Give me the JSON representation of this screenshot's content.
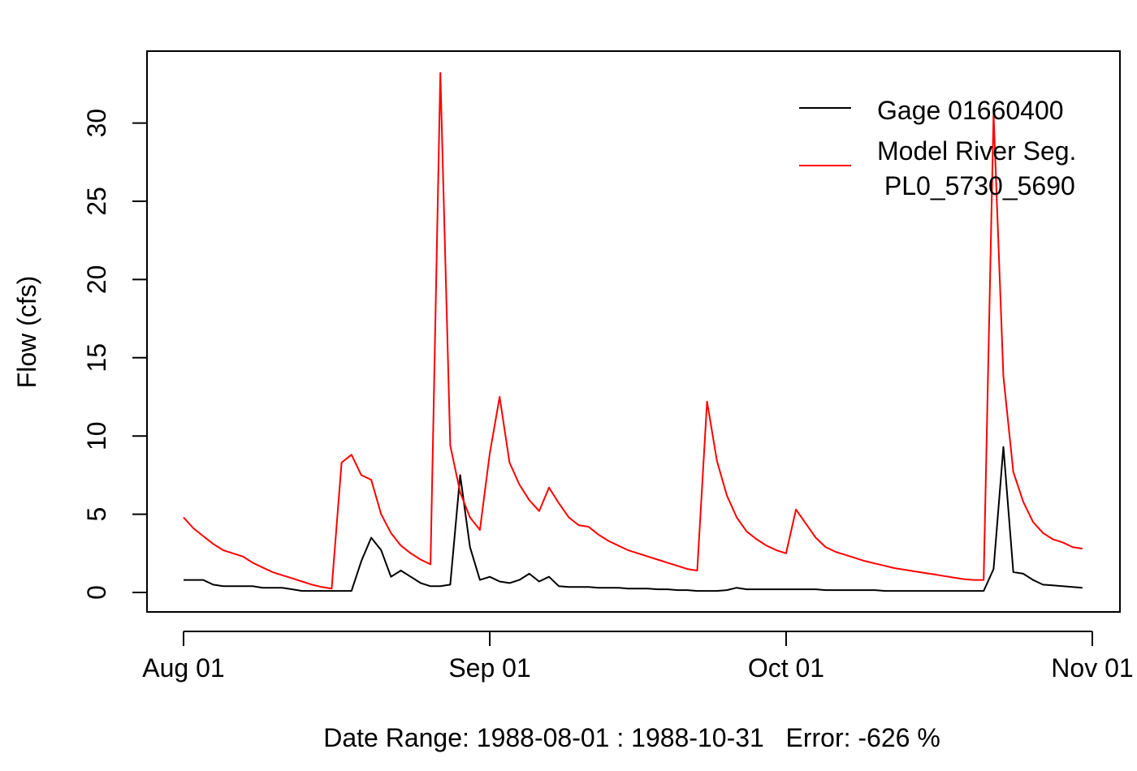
{
  "chart_data": {
    "type": "line",
    "ylabel": "Flow (cfs)",
    "xlabel": "Date Range: 1988-08-01 : 1988-10-31   Error: -626 %",
    "ylim": [
      0,
      33.4
    ],
    "xlim": [
      "1988-08-01",
      "1988-11-01"
    ],
    "grid": false,
    "legend_position": "top-right",
    "yticks": [
      0,
      5,
      10,
      15,
      20,
      25,
      30
    ],
    "ytick_labels": [
      "0",
      "5",
      "10",
      "15",
      "20",
      "25",
      "30"
    ],
    "xticks": [
      {
        "date": "1988-08-01",
        "label": "Aug 01"
      },
      {
        "date": "1988-09-01",
        "label": "Sep 01"
      },
      {
        "date": "1988-10-01",
        "label": "Oct 01"
      },
      {
        "date": "1988-11-01",
        "label": "Nov 01"
      }
    ],
    "series": [
      {
        "name": "Gage 01660400",
        "color": "#000000",
        "x": [
          "1988-08-01",
          "1988-08-02",
          "1988-08-03",
          "1988-08-04",
          "1988-08-05",
          "1988-08-06",
          "1988-08-07",
          "1988-08-08",
          "1988-08-09",
          "1988-08-10",
          "1988-08-11",
          "1988-08-12",
          "1988-08-13",
          "1988-08-14",
          "1988-08-15",
          "1988-08-16",
          "1988-08-17",
          "1988-08-18",
          "1988-08-19",
          "1988-08-20",
          "1988-08-21",
          "1988-08-22",
          "1988-08-23",
          "1988-08-24",
          "1988-08-25",
          "1988-08-26",
          "1988-08-27",
          "1988-08-28",
          "1988-08-29",
          "1988-08-30",
          "1988-08-31",
          "1988-09-01",
          "1988-09-02",
          "1988-09-03",
          "1988-09-04",
          "1988-09-05",
          "1988-09-06",
          "1988-09-07",
          "1988-09-08",
          "1988-09-09",
          "1988-09-10",
          "1988-09-11",
          "1988-09-12",
          "1988-09-13",
          "1988-09-14",
          "1988-09-15",
          "1988-09-16",
          "1988-09-17",
          "1988-09-18",
          "1988-09-19",
          "1988-09-20",
          "1988-09-21",
          "1988-09-22",
          "1988-09-23",
          "1988-09-24",
          "1988-09-25",
          "1988-09-26",
          "1988-09-27",
          "1988-09-28",
          "1988-09-29",
          "1988-09-30",
          "1988-10-01",
          "1988-10-02",
          "1988-10-03",
          "1988-10-04",
          "1988-10-05",
          "1988-10-06",
          "1988-10-07",
          "1988-10-08",
          "1988-10-09",
          "1988-10-10",
          "1988-10-11",
          "1988-10-12",
          "1988-10-13",
          "1988-10-14",
          "1988-10-15",
          "1988-10-16",
          "1988-10-17",
          "1988-10-18",
          "1988-10-19",
          "1988-10-20",
          "1988-10-21",
          "1988-10-22",
          "1988-10-23",
          "1988-10-24",
          "1988-10-25",
          "1988-10-26",
          "1988-10-27",
          "1988-10-28",
          "1988-10-29",
          "1988-10-30",
          "1988-10-31"
        ],
        "values": [
          0.8,
          0.8,
          0.8,
          0.5,
          0.4,
          0.4,
          0.4,
          0.4,
          0.3,
          0.3,
          0.3,
          0.2,
          0.1,
          0.1,
          0.1,
          0.1,
          0.1,
          0.1,
          2.0,
          3.5,
          2.7,
          1.0,
          1.4,
          1.0,
          0.6,
          0.4,
          0.4,
          0.5,
          7.5,
          2.9,
          0.8,
          1.0,
          0.7,
          0.6,
          0.8,
          1.2,
          0.7,
          1.0,
          0.4,
          0.35,
          0.35,
          0.35,
          0.3,
          0.3,
          0.3,
          0.25,
          0.25,
          0.25,
          0.2,
          0.2,
          0.15,
          0.15,
          0.1,
          0.1,
          0.1,
          0.15,
          0.3,
          0.2,
          0.2,
          0.2,
          0.2,
          0.2,
          0.2,
          0.2,
          0.2,
          0.15,
          0.15,
          0.15,
          0.15,
          0.15,
          0.15,
          0.1,
          0.1,
          0.1,
          0.1,
          0.1,
          0.1,
          0.1,
          0.1,
          0.1,
          0.1,
          0.1,
          1.5,
          9.3,
          1.3,
          1.2,
          0.8,
          0.5,
          0.45,
          0.4,
          0.35,
          0.3
        ]
      },
      {
        "name": "Model River Seg.\n PL0_5730_5690",
        "color": "#ff0000",
        "x": [
          "1988-08-01",
          "1988-08-02",
          "1988-08-03",
          "1988-08-04",
          "1988-08-05",
          "1988-08-06",
          "1988-08-07",
          "1988-08-08",
          "1988-08-09",
          "1988-08-10",
          "1988-08-11",
          "1988-08-12",
          "1988-08-13",
          "1988-08-14",
          "1988-08-15",
          "1988-08-16",
          "1988-08-17",
          "1988-08-18",
          "1988-08-19",
          "1988-08-20",
          "1988-08-21",
          "1988-08-22",
          "1988-08-23",
          "1988-08-24",
          "1988-08-25",
          "1988-08-26",
          "1988-08-27",
          "1988-08-28",
          "1988-08-29",
          "1988-08-30",
          "1988-08-31",
          "1988-09-01",
          "1988-09-02",
          "1988-09-03",
          "1988-09-04",
          "1988-09-05",
          "1988-09-06",
          "1988-09-07",
          "1988-09-08",
          "1988-09-09",
          "1988-09-10",
          "1988-09-11",
          "1988-09-12",
          "1988-09-13",
          "1988-09-14",
          "1988-09-15",
          "1988-09-16",
          "1988-09-17",
          "1988-09-18",
          "1988-09-19",
          "1988-09-20",
          "1988-09-21",
          "1988-09-22",
          "1988-09-23",
          "1988-09-24",
          "1988-09-25",
          "1988-09-26",
          "1988-09-27",
          "1988-09-28",
          "1988-09-29",
          "1988-09-30",
          "1988-10-01",
          "1988-10-02",
          "1988-10-03",
          "1988-10-04",
          "1988-10-05",
          "1988-10-06",
          "1988-10-07",
          "1988-10-08",
          "1988-10-09",
          "1988-10-10",
          "1988-10-11",
          "1988-10-12",
          "1988-10-13",
          "1988-10-14",
          "1988-10-15",
          "1988-10-16",
          "1988-10-17",
          "1988-10-18",
          "1988-10-19",
          "1988-10-20",
          "1988-10-21",
          "1988-10-22",
          "1988-10-23",
          "1988-10-24",
          "1988-10-25",
          "1988-10-26",
          "1988-10-27",
          "1988-10-28",
          "1988-10-29",
          "1988-10-30",
          "1988-10-31"
        ],
        "values": [
          4.8,
          4.1,
          3.6,
          3.1,
          2.7,
          2.5,
          2.3,
          1.9,
          1.6,
          1.3,
          1.1,
          0.9,
          0.7,
          0.5,
          0.35,
          0.25,
          8.3,
          8.8,
          7.5,
          7.2,
          5.0,
          3.8,
          3.0,
          2.5,
          2.1,
          1.8,
          33.2,
          9.4,
          6.4,
          4.8,
          4.0,
          8.9,
          12.5,
          8.3,
          6.9,
          5.9,
          5.2,
          6.7,
          5.7,
          4.8,
          4.3,
          4.2,
          3.7,
          3.3,
          3.0,
          2.7,
          2.5,
          2.3,
          2.1,
          1.9,
          1.7,
          1.5,
          1.4,
          12.2,
          8.4,
          6.2,
          4.8,
          3.9,
          3.4,
          3.0,
          2.7,
          2.5,
          5.3,
          4.4,
          3.5,
          2.9,
          2.6,
          2.4,
          2.2,
          2.0,
          1.85,
          1.7,
          1.55,
          1.45,
          1.35,
          1.25,
          1.15,
          1.05,
          0.95,
          0.85,
          0.8,
          0.8,
          30.6,
          13.8,
          7.7,
          5.8,
          4.5,
          3.8,
          3.4,
          3.2,
          2.9,
          2.8
        ]
      }
    ],
    "legend": {
      "labels": [
        "Gage 01660400",
        "Model River Seg.",
        " PL0_5730_5690"
      ]
    }
  }
}
